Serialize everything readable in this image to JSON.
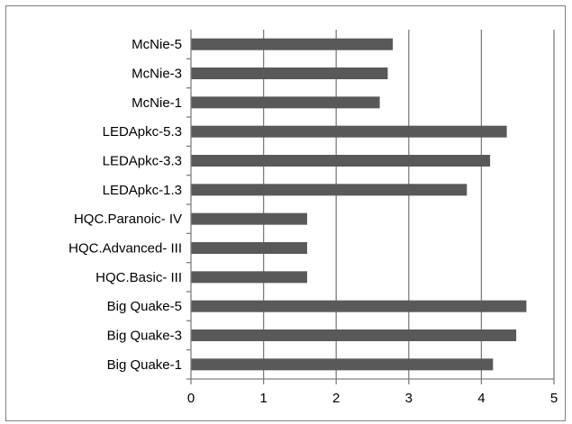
{
  "chart_data": {
    "type": "bar",
    "orientation": "horizontal",
    "categories": [
      "Big Quake-1",
      "Big Quake-3",
      "Big Quake-5",
      "HQC.Basic- III",
      "HQC.Advanced- III",
      "HQC.Paranoic- IV",
      "LEDApkc-1.3",
      "LEDApkc-3.3",
      "LEDApkc-5.3",
      "McNie-1",
      "McNie-3",
      "McNie-5"
    ],
    "values": [
      4.16,
      4.48,
      4.62,
      1.6,
      1.6,
      1.6,
      3.8,
      4.12,
      4.35,
      2.6,
      2.71,
      2.78
    ],
    "xlim": [
      0,
      5
    ],
    "xticks": [
      "0",
      "1",
      "2",
      "3",
      "4",
      "5"
    ],
    "title": "",
    "xlabel": "",
    "ylabel": "",
    "grid": "vertical",
    "legend": "none",
    "bar_color": "#595959",
    "grid_color": "#7f7f7f"
  }
}
